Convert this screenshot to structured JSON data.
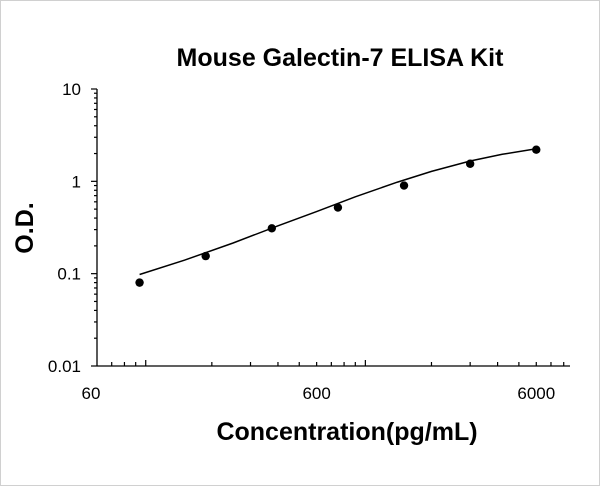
{
  "chart_data": {
    "type": "scatter",
    "title": "Mouse Galectin-7 ELISA Kit",
    "xlabel": "Concentration(pg/mL)",
    "ylabel": "O.D.",
    "x_scale": "log",
    "y_scale": "log",
    "xlim": [
      60,
      10000
    ],
    "ylim": [
      0.01,
      10
    ],
    "x_ticks": [
      {
        "value": 60,
        "label": "60"
      },
      {
        "value": 600,
        "label": "600"
      },
      {
        "value": 6000,
        "label": "6000"
      }
    ],
    "y_ticks": [
      {
        "value": 10,
        "label": "10"
      },
      {
        "value": 1,
        "label": "1"
      },
      {
        "value": 0.1,
        "label": "0.1"
      },
      {
        "value": 0.01,
        "label": "0.01"
      }
    ],
    "grid": false,
    "legend": "none",
    "series": [
      {
        "x": [
          93.75,
          187.5,
          375,
          750,
          1500,
          3000,
          6000
        ],
        "y": [
          0.08,
          0.155,
          0.31,
          0.52,
          0.9,
          1.55,
          2.2
        ]
      }
    ],
    "fit_curve": {
      "x": [
        93.75,
        150,
        250,
        400,
        600,
        900,
        1400,
        2000,
        3000,
        4200,
        6000
      ],
      "y": [
        0.098,
        0.14,
        0.215,
        0.33,
        0.47,
        0.68,
        0.98,
        1.28,
        1.66,
        1.96,
        2.25
      ]
    }
  }
}
